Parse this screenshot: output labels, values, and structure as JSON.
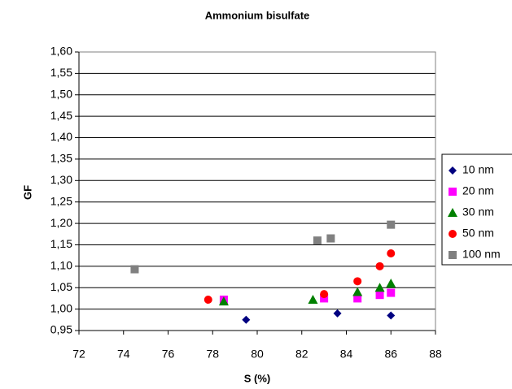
{
  "chart_data": {
    "type": "scatter",
    "title": "Ammonium bisulfate",
    "x_label": "S (%)",
    "y_label": "GF",
    "xlim": [
      72,
      88
    ],
    "xticks": [
      72,
      74,
      76,
      78,
      80,
      82,
      84,
      86,
      88
    ],
    "ylim": [
      0.95,
      1.6
    ],
    "yticks": [
      {
        "value": 0.95,
        "label": "0,95"
      },
      {
        "value": 1.0,
        "label": "1,00"
      },
      {
        "value": 1.05,
        "label": "1,05"
      },
      {
        "value": 1.1,
        "label": "1,10"
      },
      {
        "value": 1.15,
        "label": "1,15"
      },
      {
        "value": 1.2,
        "label": "1,20"
      },
      {
        "value": 1.25,
        "label": "1,25"
      },
      {
        "value": 1.3,
        "label": "1,30"
      },
      {
        "value": 1.35,
        "label": "1,35"
      },
      {
        "value": 1.4,
        "label": "1,40"
      },
      {
        "value": 1.45,
        "label": "1,45"
      },
      {
        "value": 1.5,
        "label": "1,50"
      },
      {
        "value": 1.55,
        "label": "1,55"
      },
      {
        "value": 1.6,
        "label": "1,60"
      }
    ],
    "grid": true,
    "legend": "right",
    "series": [
      {
        "name": "10 nm",
        "color": "#000080",
        "marker": "diamond",
        "x": [
          79.5,
          83.6,
          86.0
        ],
        "values": [
          0.975,
          0.99,
          0.985
        ]
      },
      {
        "name": "20 nm",
        "color": "#ff00ff",
        "marker": "square",
        "x": [
          78.5,
          83.0,
          84.5,
          85.5,
          86.0
        ],
        "values": [
          1.022,
          1.025,
          1.025,
          1.033,
          1.038
        ]
      },
      {
        "name": "30 nm",
        "color": "#008000",
        "marker": "triangle",
        "x": [
          78.5,
          82.5,
          84.5,
          85.5,
          86.0
        ],
        "values": [
          1.018,
          1.022,
          1.04,
          1.05,
          1.06
        ]
      },
      {
        "name": "50 nm",
        "color": "#ff0000",
        "marker": "circle",
        "x": [
          77.8,
          83.0,
          84.5,
          85.5,
          86.0
        ],
        "values": [
          1.022,
          1.035,
          1.065,
          1.1,
          1.13
        ]
      },
      {
        "name": "100 nm",
        "color": "#808080",
        "marker": "square",
        "x": [
          74.5,
          82.7,
          83.3,
          86.0
        ],
        "values": [
          1.093,
          1.16,
          1.165,
          1.197
        ]
      }
    ]
  }
}
